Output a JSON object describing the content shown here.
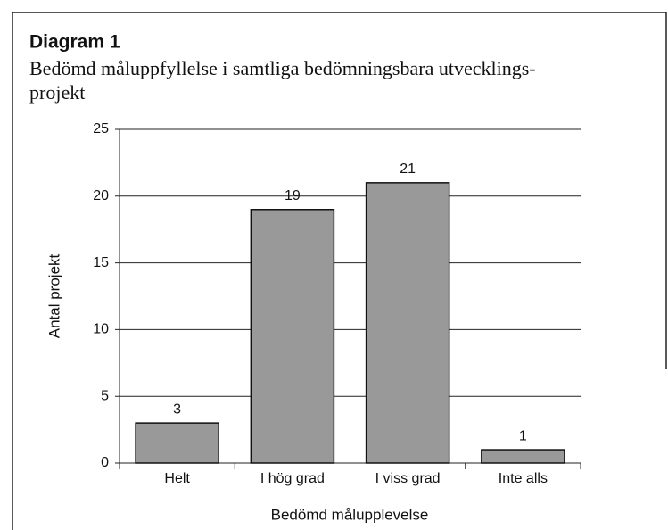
{
  "chart_data": {
    "type": "bar",
    "title": "Diagram 1",
    "subtitle": [
      "Bedömd måluppfyllelse i samtliga bedömningsbara utvecklings-",
      "projekt"
    ],
    "categories": [
      "Helt",
      "I hög grad",
      "I viss grad",
      "Inte alls"
    ],
    "values": [
      3,
      19,
      21,
      1
    ],
    "color": "#999999",
    "ylim": [
      0,
      25
    ],
    "yticks": [
      0,
      5,
      10,
      15,
      20,
      25
    ],
    "grid": true,
    "xlabel": "Bedömd målupplevelse",
    "ylabel": "Antal projekt"
  }
}
